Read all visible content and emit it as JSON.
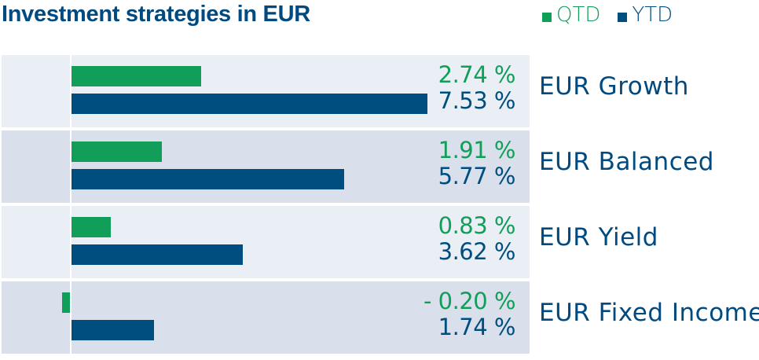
{
  "title": "Investment strategies in EUR",
  "colors": {
    "qtd": "#119e58",
    "ytd": "#004e80",
    "row_light": "#eaeff5",
    "row_dark": "#d9e0eb",
    "title": "#004a80"
  },
  "legend": [
    {
      "label": "QTD",
      "color": "#119e58"
    },
    {
      "label": "YTD",
      "color": "#004e80"
    }
  ],
  "chart_data": {
    "type": "bar",
    "orientation": "horizontal",
    "title": "Investment strategies in EUR",
    "categories": [
      "EUR Growth",
      "EUR Balanced",
      "EUR Yield",
      "EUR Fixed Income"
    ],
    "series": [
      {
        "name": "QTD",
        "values": [
          2.74,
          1.91,
          0.83,
          -0.2
        ],
        "labels": [
          "2.74 %",
          "1.91 %",
          "0.83 %",
          "- 0.20 %"
        ]
      },
      {
        "name": "YTD",
        "values": [
          7.53,
          5.77,
          3.62,
          1.74
        ],
        "labels": [
          "7.53 %",
          "5.77 %",
          "3.62 %",
          "1.74 %"
        ]
      }
    ],
    "legend_position": "top-right"
  }
}
